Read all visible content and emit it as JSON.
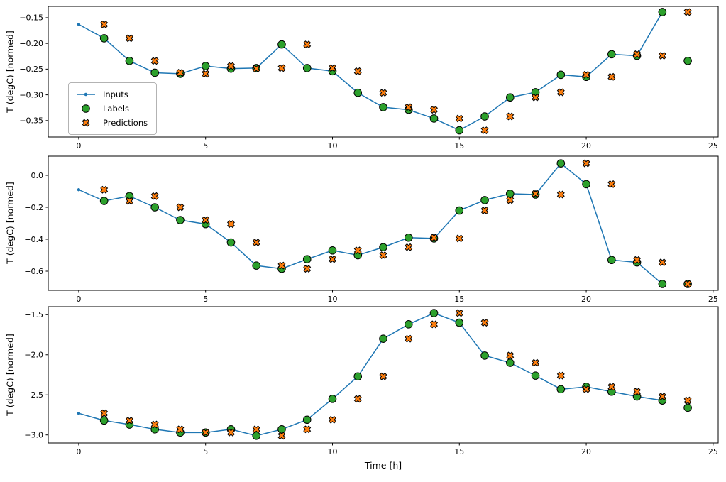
{
  "figure": {
    "xlabel": "Time [h]",
    "ylabel": "T (degC) [normed]"
  },
  "legend": {
    "items": [
      {
        "label": "Inputs",
        "marker": "line-dot"
      },
      {
        "label": "Labels",
        "marker": "circle"
      },
      {
        "label": "Predictions",
        "marker": "X"
      }
    ],
    "position": "center-left of first subplot"
  },
  "colors": {
    "inputs": "#1f77b4",
    "labels": "#2ca02c",
    "predictions": "#ff7f0e",
    "marker_edge": "#000000"
  },
  "chart_data": [
    {
      "type": "line",
      "ylabel": "T (degC) [normed]",
      "xlim": [
        -1.2,
        25.2
      ],
      "ylim": [
        -0.382,
        -0.128
      ],
      "xticks": [
        0,
        5,
        10,
        15,
        20,
        25
      ],
      "yticks": [
        -0.15,
        -0.2,
        -0.25,
        -0.3,
        -0.35
      ],
      "ytick_decimals": 2,
      "grid": false,
      "legend_position": "center-left",
      "series": [
        {
          "name": "Inputs",
          "type": "line",
          "marker": "dot",
          "x": [
            0,
            1,
            2,
            3,
            4,
            5,
            6,
            7,
            8,
            9,
            10,
            11,
            12,
            13,
            14,
            15,
            16,
            17,
            18,
            19,
            20,
            21,
            22,
            23
          ],
          "y": [
            -0.163,
            -0.19,
            -0.234,
            -0.257,
            -0.259,
            -0.244,
            -0.249,
            -0.248,
            -0.202,
            -0.248,
            -0.254,
            -0.296,
            -0.324,
            -0.329,
            -0.346,
            -0.369,
            -0.342,
            -0.305,
            -0.295,
            -0.261,
            -0.265,
            -0.221,
            -0.224,
            -0.139
          ]
        },
        {
          "name": "Labels",
          "type": "scatter",
          "marker": "circle",
          "x": [
            1,
            2,
            3,
            4,
            5,
            6,
            7,
            8,
            9,
            10,
            11,
            12,
            13,
            14,
            15,
            16,
            17,
            18,
            19,
            20,
            21,
            22,
            23,
            24
          ],
          "y": [
            -0.19,
            -0.234,
            -0.257,
            -0.259,
            -0.244,
            -0.249,
            -0.248,
            -0.202,
            -0.248,
            -0.254,
            -0.296,
            -0.324,
            -0.329,
            -0.346,
            -0.369,
            -0.342,
            -0.305,
            -0.295,
            -0.261,
            -0.265,
            -0.221,
            -0.224,
            -0.139,
            -0.234
          ]
        },
        {
          "name": "Predictions",
          "type": "scatter",
          "marker": "X",
          "x": [
            1,
            2,
            3,
            4,
            5,
            6,
            7,
            8,
            9,
            10,
            11,
            12,
            13,
            14,
            15,
            16,
            17,
            18,
            19,
            20,
            21,
            22,
            23,
            24
          ],
          "y": [
            -0.163,
            -0.19,
            -0.234,
            -0.257,
            -0.259,
            -0.244,
            -0.249,
            -0.248,
            -0.202,
            -0.248,
            -0.254,
            -0.296,
            -0.324,
            -0.329,
            -0.346,
            -0.369,
            -0.342,
            -0.305,
            -0.295,
            -0.261,
            -0.265,
            -0.221,
            -0.224,
            -0.139
          ]
        }
      ]
    },
    {
      "type": "line",
      "ylabel": "T (degC) [normed]",
      "xlim": [
        -1.2,
        25.2
      ],
      "ylim": [
        -0.72,
        0.12
      ],
      "xticks": [
        0,
        5,
        10,
        15,
        20,
        25
      ],
      "yticks": [
        0.0,
        -0.2,
        -0.4,
        -0.6
      ],
      "ytick_decimals": 1,
      "grid": false,
      "series": [
        {
          "name": "Inputs",
          "type": "line",
          "marker": "dot",
          "x": [
            0,
            1,
            2,
            3,
            4,
            5,
            6,
            7,
            8,
            9,
            10,
            11,
            12,
            13,
            14,
            15,
            16,
            17,
            18,
            19,
            20,
            21,
            22,
            23
          ],
          "y": [
            -0.09,
            -0.16,
            -0.13,
            -0.2,
            -0.28,
            -0.305,
            -0.42,
            -0.565,
            -0.585,
            -0.525,
            -0.47,
            -0.5,
            -0.45,
            -0.39,
            -0.395,
            -0.22,
            -0.155,
            -0.115,
            -0.12,
            0.075,
            -0.055,
            -0.53,
            -0.545,
            -0.68
          ]
        },
        {
          "name": "Labels",
          "type": "scatter",
          "marker": "circle",
          "x": [
            1,
            2,
            3,
            4,
            5,
            6,
            7,
            8,
            9,
            10,
            11,
            12,
            13,
            14,
            15,
            16,
            17,
            18,
            19,
            20,
            21,
            22,
            23,
            24
          ],
          "y": [
            -0.16,
            -0.13,
            -0.2,
            -0.28,
            -0.305,
            -0.42,
            -0.565,
            -0.585,
            -0.525,
            -0.47,
            -0.5,
            -0.45,
            -0.39,
            -0.395,
            -0.22,
            -0.155,
            -0.115,
            -0.12,
            0.075,
            -0.055,
            -0.53,
            -0.545,
            -0.68,
            -0.68
          ]
        },
        {
          "name": "Predictions",
          "type": "scatter",
          "marker": "X",
          "x": [
            1,
            2,
            3,
            4,
            5,
            6,
            7,
            8,
            9,
            10,
            11,
            12,
            13,
            14,
            15,
            16,
            17,
            18,
            19,
            20,
            21,
            22,
            23,
            24
          ],
          "y": [
            -0.09,
            -0.16,
            -0.13,
            -0.2,
            -0.28,
            -0.305,
            -0.42,
            -0.565,
            -0.585,
            -0.525,
            -0.47,
            -0.5,
            -0.45,
            -0.39,
            -0.395,
            -0.22,
            -0.155,
            -0.115,
            -0.12,
            0.075,
            -0.055,
            -0.53,
            -0.545,
            -0.68
          ]
        }
      ]
    },
    {
      "type": "line",
      "xlabel": "Time [h]",
      "ylabel": "T (degC) [normed]",
      "xlim": [
        -1.2,
        25.2
      ],
      "ylim": [
        -3.1,
        -1.4
      ],
      "xticks": [
        0,
        5,
        10,
        15,
        20,
        25
      ],
      "yticks": [
        -1.5,
        -2.0,
        -2.5,
        -3.0
      ],
      "ytick_decimals": 1,
      "grid": false,
      "series": [
        {
          "name": "Inputs",
          "type": "line",
          "marker": "dot",
          "x": [
            0,
            1,
            2,
            3,
            4,
            5,
            6,
            7,
            8,
            9,
            10,
            11,
            12,
            13,
            14,
            15,
            16,
            17,
            18,
            19,
            20,
            21,
            22,
            23
          ],
          "y": [
            -2.73,
            -2.82,
            -2.87,
            -2.93,
            -2.97,
            -2.97,
            -2.93,
            -3.01,
            -2.93,
            -2.81,
            -2.55,
            -2.27,
            -1.8,
            -1.62,
            -1.48,
            -1.6,
            -2.01,
            -2.1,
            -2.26,
            -2.43,
            -2.4,
            -2.46,
            -2.52,
            -2.57
          ]
        },
        {
          "name": "Labels",
          "type": "scatter",
          "marker": "circle",
          "x": [
            1,
            2,
            3,
            4,
            5,
            6,
            7,
            8,
            9,
            10,
            11,
            12,
            13,
            14,
            15,
            16,
            17,
            18,
            19,
            20,
            21,
            22,
            23,
            24
          ],
          "y": [
            -2.82,
            -2.87,
            -2.93,
            -2.97,
            -2.97,
            -2.93,
            -3.01,
            -2.93,
            -2.81,
            -2.55,
            -2.27,
            -1.8,
            -1.62,
            -1.48,
            -1.6,
            -2.01,
            -2.1,
            -2.26,
            -2.43,
            -2.4,
            -2.46,
            -2.52,
            -2.57,
            -2.66
          ]
        },
        {
          "name": "Predictions",
          "type": "scatter",
          "marker": "X",
          "x": [
            1,
            2,
            3,
            4,
            5,
            6,
            7,
            8,
            9,
            10,
            11,
            12,
            13,
            14,
            15,
            16,
            17,
            18,
            19,
            20,
            21,
            22,
            23,
            24
          ],
          "y": [
            -2.73,
            -2.82,
            -2.87,
            -2.93,
            -2.97,
            -2.97,
            -2.93,
            -3.01,
            -2.93,
            -2.81,
            -2.55,
            -2.27,
            -1.8,
            -1.62,
            -1.48,
            -1.6,
            -2.01,
            -2.1,
            -2.26,
            -2.43,
            -2.4,
            -2.46,
            -2.52,
            -2.57
          ]
        }
      ]
    }
  ]
}
